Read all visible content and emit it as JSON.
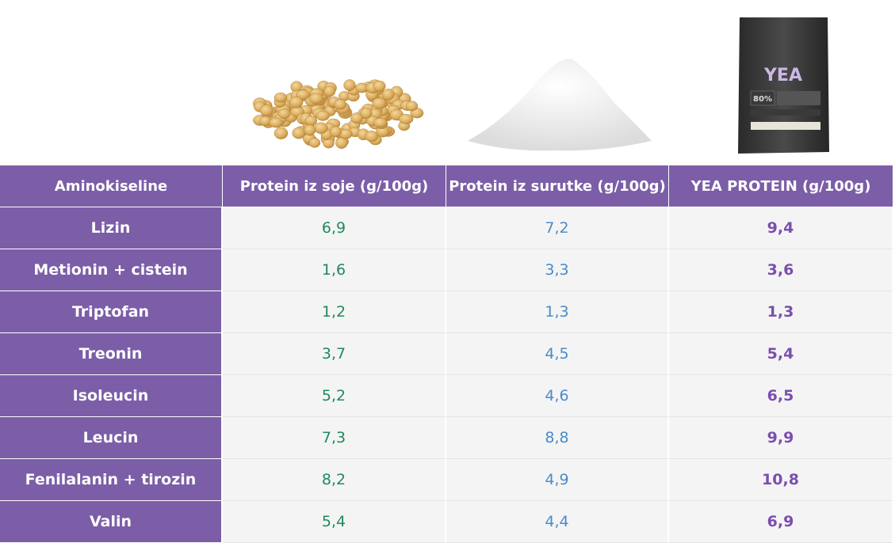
{
  "table": {
    "header": [
      "Aminokiseline",
      "Protein iz soje (g/100g)",
      "Protein iz surutke (g/100g)",
      "YEA PROTEIN (g/100g)"
    ],
    "rows": [
      [
        "Lizin",
        "6,9",
        "7,2",
        "9,4"
      ],
      [
        "Metionin + cistein",
        "1,6",
        "3,3",
        "3,6"
      ],
      [
        "Triptofan",
        "1,2",
        "1,3",
        "1,3"
      ],
      [
        "Treonin",
        "3,7",
        "4,5",
        "5,4"
      ],
      [
        "Isoleucin",
        "5,2",
        "4,6",
        "6,5"
      ],
      [
        "Leucin",
        "7,3",
        "8,8",
        "9,9"
      ],
      [
        "Fenilalanin + tirozin",
        "8,2",
        "4,9",
        "10,8"
      ],
      [
        "Valin",
        "5,4",
        "4,4",
        "6,9"
      ]
    ]
  },
  "package": {
    "brand": "YEA",
    "claim": "80%"
  }
}
